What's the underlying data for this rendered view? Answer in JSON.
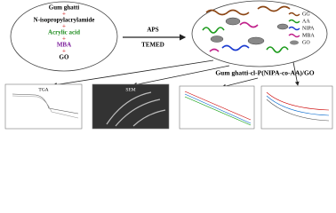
{
  "reactants": {
    "items": [
      "Gum ghatti",
      "N-isopropylacrylamide",
      "Acrylic acid",
      "MBA",
      "GO"
    ],
    "plus": "+"
  },
  "conditions": {
    "initiator": "APS",
    "accelerator": "TEMED"
  },
  "legend": [
    "GG",
    "AA",
    "NIPA",
    "MBA",
    "GO"
  ],
  "product": "Gum ghatti-cl-P(NIPA-co-AA)/GO",
  "panels": [
    "TGA",
    "SEM"
  ]
}
